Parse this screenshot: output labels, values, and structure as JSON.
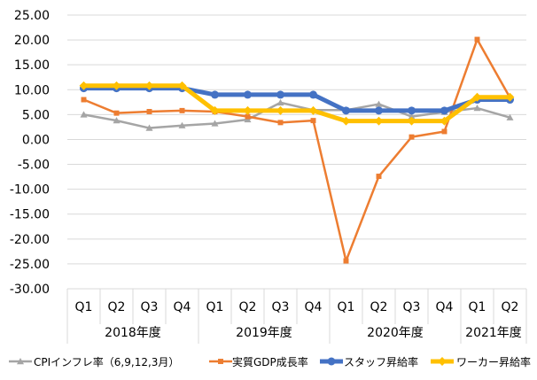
{
  "chart_data": {
    "type": "line",
    "x": [
      "Q1",
      "Q2",
      "Q3",
      "Q4",
      "Q1",
      "Q2",
      "Q3",
      "Q4",
      "Q1",
      "Q2",
      "Q3",
      "Q4",
      "Q1",
      "Q2"
    ],
    "groups": [
      {
        "label": "2018年度",
        "start": 0,
        "count": 4
      },
      {
        "label": "2019年度",
        "start": 4,
        "count": 4
      },
      {
        "label": "2020年度",
        "start": 8,
        "count": 4
      },
      {
        "label": "2021年度",
        "start": 12,
        "count": 2
      }
    ],
    "ylim": [
      -30,
      25
    ],
    "yticks": [
      "25.00",
      "20.00",
      "15.00",
      "10.00",
      "5.00",
      "0.00",
      "-5.00",
      "-10.00",
      "-15.00",
      "-20.00",
      "-25.00",
      "-30.00"
    ],
    "ytick_values": [
      25,
      20,
      15,
      10,
      5,
      0,
      -5,
      -10,
      -15,
      -20,
      -25,
      -30
    ],
    "grid": true,
    "legend_position": "bottom",
    "series": [
      {
        "name": "CPIインフレ率（6,9,12,3月）",
        "color": "#A5A5A5",
        "marker": "triangle",
        "values": [
          5.0,
          3.8,
          2.3,
          2.8,
          3.2,
          4.0,
          7.4,
          5.9,
          5.9,
          7.1,
          4.6,
          5.5,
          6.3,
          4.4
        ]
      },
      {
        "name": "実質GDP成長率",
        "color": "#ED7D31",
        "marker": "square",
        "values": [
          8.0,
          5.3,
          5.6,
          5.8,
          5.6,
          4.6,
          3.4,
          3.8,
          -24.4,
          -7.4,
          0.5,
          1.6,
          20.1,
          8.4
        ]
      },
      {
        "name": "スタッフ昇給率",
        "color": "#4472C4",
        "marker": "circle",
        "values": [
          10.3,
          10.3,
          10.3,
          10.3,
          9.0,
          9.0,
          9.0,
          9.0,
          5.8,
          5.8,
          5.8,
          5.8,
          8.0,
          8.0
        ]
      },
      {
        "name": "ワーカー昇給率",
        "color": "#FFC000",
        "marker": "diamond",
        "values": [
          10.8,
          10.8,
          10.8,
          10.8,
          5.8,
          5.8,
          5.8,
          5.8,
          3.7,
          3.7,
          3.7,
          3.7,
          8.5,
          8.5
        ]
      }
    ]
  }
}
